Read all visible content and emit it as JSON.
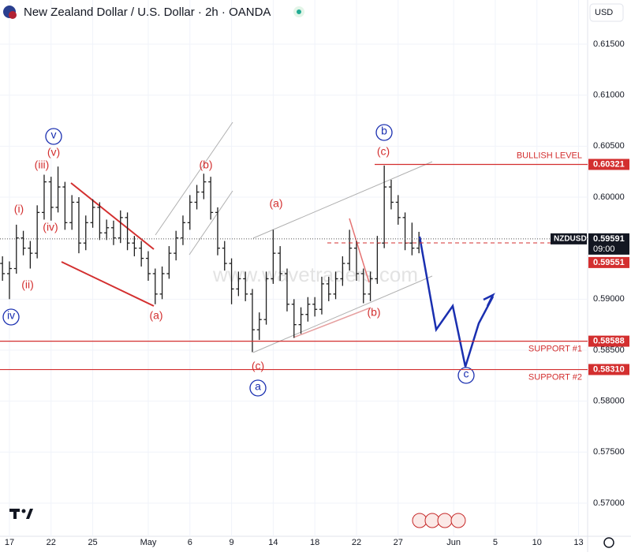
{
  "chart_data": {
    "type": "candlestick",
    "title": "New Zealand Dollar / U.S. Dollar · 2h · OANDA",
    "currency": "USD",
    "watermark": "www.wavetraders.com",
    "symbol": "NZDUSD",
    "last_price": 0.59591,
    "countdown": "09:00",
    "prev_level": 0.59551,
    "xlim": [
      -0.68,
      41.65
    ],
    "xticks": [
      {
        "value": 0,
        "label": "17"
      },
      {
        "value": 3,
        "label": "22"
      },
      {
        "value": 6,
        "label": "25"
      },
      {
        "value": 10,
        "label": "May"
      },
      {
        "value": 13,
        "label": "6"
      },
      {
        "value": 16,
        "label": "9"
      },
      {
        "value": 19,
        "label": "14"
      },
      {
        "value": 22,
        "label": "18"
      },
      {
        "value": 25,
        "label": "22"
      },
      {
        "value": 28,
        "label": "27"
      },
      {
        "value": 32,
        "label": "Jun"
      },
      {
        "value": 35,
        "label": "5"
      },
      {
        "value": 38,
        "label": "10"
      },
      {
        "value": 41,
        "label": "13"
      }
    ],
    "ylim": [
      0.56675,
      0.61933
    ],
    "yticks": [
      {
        "value": 0.57,
        "label": "0.57000"
      },
      {
        "value": 0.575,
        "label": "0.57500"
      },
      {
        "value": 0.58,
        "label": "0.58000"
      },
      {
        "value": 0.585,
        "label": "0.58500"
      },
      {
        "value": 0.59,
        "label": "0.59000"
      },
      {
        "value": 0.6,
        "label": "0.60000"
      },
      {
        "value": 0.605,
        "label": "0.60500"
      },
      {
        "value": 0.61,
        "label": "0.61000"
      },
      {
        "value": 0.615,
        "label": "0.61500"
      }
    ],
    "color": "#1e1e1e",
    "x": [
      -0.5,
      0,
      0.5,
      1,
      1.5,
      2,
      2.5,
      3,
      3.5,
      4,
      4.5,
      5,
      5.5,
      6,
      6.5,
      7,
      7.5,
      8,
      8.5,
      9,
      9.5,
      10,
      10.5,
      11,
      11.5,
      12,
      12.5,
      13,
      13.5,
      14,
      14.5,
      15,
      15.5,
      16,
      16.5,
      17,
      17.5,
      18,
      18.5,
      19,
      19.5,
      20,
      20.5,
      21,
      21.5,
      22,
      22.5,
      23,
      23.5,
      24,
      24.5,
      25,
      25.5,
      26,
      26.5,
      27,
      27.5,
      28,
      28.5,
      29,
      29.5
    ],
    "open": [
      0.5935,
      0.5925,
      0.593,
      0.596,
      0.595,
      0.5945,
      0.5985,
      0.6015,
      0.599,
      0.601,
      0.5975,
      0.5995,
      0.5955,
      0.5975,
      0.599,
      0.5965,
      0.597,
      0.596,
      0.598,
      0.5955,
      0.595,
      0.594,
      0.5925,
      0.5905,
      0.5925,
      0.5945,
      0.596,
      0.5975,
      0.5995,
      0.6005,
      0.6015,
      0.5985,
      0.595,
      0.5935,
      0.591,
      0.592,
      0.5905,
      0.587,
      0.588,
      0.592,
      0.5945,
      0.5925,
      0.5895,
      0.5875,
      0.5885,
      0.5895,
      0.589,
      0.5915,
      0.5905,
      0.592,
      0.5935,
      0.595,
      0.5925,
      0.5905,
      0.592,
      0.5955,
      0.601,
      0.5995,
      0.598,
      0.5955,
      0.595
    ],
    "high": [
      0.5942,
      0.5937,
      0.5973,
      0.5967,
      0.5957,
      0.5992,
      0.6022,
      0.602,
      0.603,
      0.6015,
      0.6002,
      0.6,
      0.5982,
      0.5998,
      0.5995,
      0.5978,
      0.5977,
      0.5987,
      0.5985,
      0.5962,
      0.5957,
      0.5947,
      0.593,
      0.5932,
      0.5952,
      0.5967,
      0.5982,
      0.6002,
      0.6012,
      0.6023,
      0.602,
      0.599,
      0.5957,
      0.594,
      0.5927,
      0.5927,
      0.591,
      0.5887,
      0.5927,
      0.5968,
      0.5952,
      0.593,
      0.59,
      0.5892,
      0.5902,
      0.5902,
      0.5922,
      0.5922,
      0.5927,
      0.5942,
      0.5968,
      0.5957,
      0.593,
      0.5927,
      0.5962,
      0.6031,
      0.6017,
      0.6002,
      0.5985,
      0.5975,
      0.5966
    ],
    "low": [
      0.5918,
      0.59,
      0.5925,
      0.5943,
      0.593,
      0.594,
      0.5978,
      0.5977,
      0.5985,
      0.5968,
      0.5968,
      0.5945,
      0.5948,
      0.597,
      0.5958,
      0.5958,
      0.5953,
      0.5955,
      0.5948,
      0.5942,
      0.5932,
      0.5918,
      0.5895,
      0.59,
      0.592,
      0.5938,
      0.5953,
      0.5968,
      0.5988,
      0.5998,
      0.5978,
      0.5943,
      0.5928,
      0.5895,
      0.5903,
      0.5898,
      0.5848,
      0.586,
      0.5875,
      0.5915,
      0.5918,
      0.5888,
      0.5862,
      0.5866,
      0.5878,
      0.5883,
      0.5885,
      0.5898,
      0.59,
      0.5913,
      0.5928,
      0.5918,
      0.5896,
      0.5898,
      0.5915,
      0.595,
      0.5988,
      0.5973,
      0.5948,
      0.5943,
      0.5945
    ],
    "close": [
      0.5925,
      0.593,
      0.596,
      0.595,
      0.5945,
      0.5985,
      0.6015,
      0.599,
      0.601,
      0.5975,
      0.5995,
      0.5955,
      0.5975,
      0.599,
      0.5965,
      0.597,
      0.596,
      0.598,
      0.5955,
      0.595,
      0.594,
      0.5925,
      0.5905,
      0.5925,
      0.5945,
      0.596,
      0.5975,
      0.5995,
      0.6005,
      0.6015,
      0.5985,
      0.595,
      0.5935,
      0.591,
      0.592,
      0.5905,
      0.587,
      0.588,
      0.592,
      0.5945,
      0.5925,
      0.5895,
      0.5875,
      0.5885,
      0.5895,
      0.589,
      0.5915,
      0.5905,
      0.592,
      0.5935,
      0.595,
      0.5925,
      0.5905,
      0.592,
      0.5955,
      0.601,
      0.5995,
      0.598,
      0.5955,
      0.595,
      0.5959
    ],
    "levels": [
      {
        "name": "BULLISH LEVEL",
        "value": 0.60321,
        "label": "0.60321"
      },
      {
        "name": "SUPPORT #1",
        "value": 0.58588,
        "label": "0.58588"
      },
      {
        "name": "SUPPORT #2",
        "value": 0.5831,
        "label": "0.58310"
      }
    ],
    "wave_labels": [
      "(i)",
      "(ii)",
      "(iii)",
      "(iv)",
      "(v)",
      "(a)",
      "(b)",
      "(a)",
      "(c)",
      "(b)",
      "(c)",
      "v",
      "iv",
      "b",
      "a",
      "c"
    ]
  }
}
